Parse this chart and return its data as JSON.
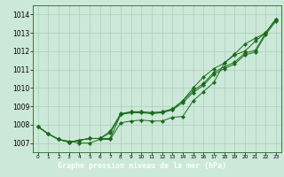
{
  "x": [
    0,
    1,
    2,
    3,
    4,
    5,
    6,
    7,
    8,
    9,
    10,
    11,
    12,
    13,
    14,
    15,
    16,
    17,
    18,
    19,
    20,
    21,
    22,
    23
  ],
  "line1": [
    1007.9,
    1007.5,
    1007.2,
    1007.1,
    1007.0,
    1007.0,
    1007.2,
    1007.2,
    1008.1,
    1008.2,
    1008.25,
    1008.2,
    1008.2,
    1008.4,
    1008.45,
    1009.3,
    1009.8,
    1010.3,
    1011.35,
    1011.8,
    1012.0,
    1012.55,
    1013.0,
    1013.75
  ],
  "line2": [
    1007.9,
    1007.5,
    1007.2,
    1007.05,
    1007.15,
    1007.25,
    1007.25,
    1007.55,
    1008.55,
    1008.65,
    1008.65,
    1008.6,
    1008.65,
    1008.8,
    1009.2,
    1009.75,
    1010.15,
    1010.75,
    1011.05,
    1011.3,
    1011.8,
    1011.95,
    1012.9,
    1013.65
  ],
  "line3": [
    1007.9,
    1007.5,
    1007.2,
    1007.05,
    1007.15,
    1007.25,
    1007.25,
    1007.25,
    1008.55,
    1008.7,
    1008.7,
    1008.65,
    1008.7,
    1008.85,
    1009.3,
    1009.85,
    1010.25,
    1010.85,
    1011.15,
    1011.4,
    1011.9,
    1012.05,
    1013.0,
    1013.75
  ],
  "line4": [
    1007.9,
    1007.5,
    1007.2,
    1007.05,
    1007.15,
    1007.25,
    1007.25,
    1007.65,
    1008.6,
    1008.7,
    1008.7,
    1008.65,
    1008.7,
    1008.85,
    1009.3,
    1010.0,
    1010.6,
    1011.05,
    1011.35,
    1011.85,
    1012.4,
    1012.7,
    1013.0,
    1013.75
  ],
  "ylim": [
    1006.5,
    1014.5
  ],
  "xlim": [
    -0.5,
    23.5
  ],
  "yticks": [
    1007,
    1008,
    1009,
    1010,
    1011,
    1012,
    1013,
    1014
  ],
  "xticks": [
    0,
    1,
    2,
    3,
    4,
    5,
    6,
    7,
    8,
    9,
    10,
    11,
    12,
    13,
    14,
    15,
    16,
    17,
    18,
    19,
    20,
    21,
    22,
    23
  ],
  "line_color": "#1a6b1a",
  "bg_color": "#cce8d8",
  "grid_color": "#aacfba",
  "xlabel": "Graphe pression niveau de la mer (hPa)",
  "xlabel_bg": "#2d6e2d",
  "xlabel_color": "#ffffff",
  "marker": "D",
  "markersize": 2.2,
  "linewidth": 0.7,
  "ytick_fontsize": 5.5,
  "xtick_fontsize": 4.2
}
